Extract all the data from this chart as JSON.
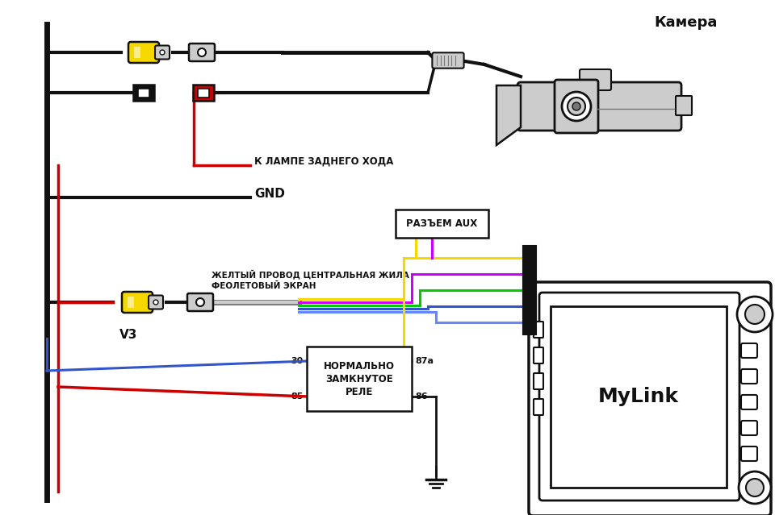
{
  "bg_color": "#ffffff",
  "black": "#111111",
  "lgray": "#cccccc",
  "dgray": "#777777",
  "label_camera": "Камера",
  "label_gnd": "GND",
  "label_lamp": "К ЛАМПЕ ЗАДНЕГО ХОДА",
  "label_v3": "V3",
  "label_yellow_wire": "ЖЕЛТЫЙ ПРОВОД ЦЕНТРАЛЬНАЯ ЖИЛА",
  "label_violet_screen": "ФЕОЛЕТОВЫЙ ЭКРАН",
  "label_aux": "РАЗЪЕМ AUX",
  "label_relay": "НОРМАЛЬНО\nЗАМКНУТОЕ\nРЕЛЕ",
  "label_mylink": "MyLink",
  "col_yellow": "#f5d800",
  "col_violet": "#cc00ff",
  "col_green": "#00cc00",
  "col_blue": "#3355cc",
  "col_red": "#cc0000",
  "col_lblue": "#6688ff",
  "col_orange": "#ff8800",
  "col_pink": "#ff88cc"
}
